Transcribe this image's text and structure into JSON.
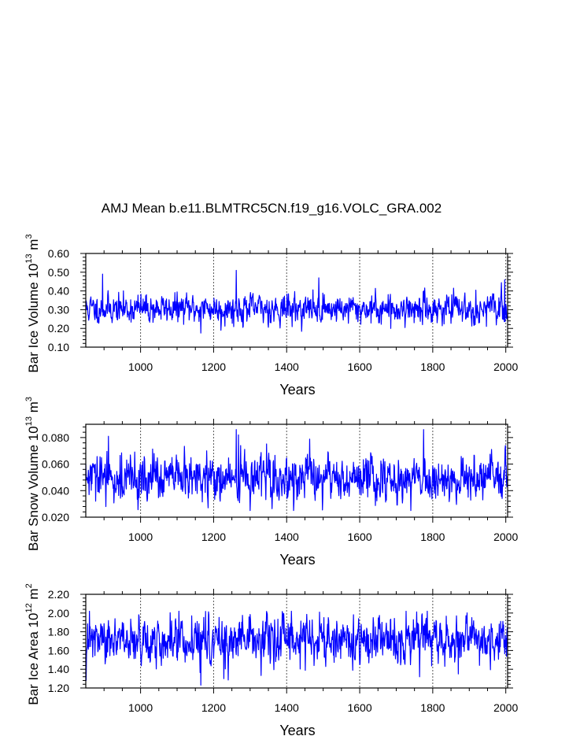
{
  "title": "AMJ Mean b.e11.BLMTRC5CN.f19_g16.VOLC_GRA.002",
  "colors": {
    "series": "#0000ff",
    "axis": "#000000",
    "grid": "#555555"
  },
  "chart_data": [
    {
      "type": "line",
      "ylabel": {
        "main": "Bar Ice Volume 10",
        "exp": "13",
        "unit": " m",
        "unit_exp": "3"
      },
      "xlabel": "Years",
      "xlim": [
        850,
        2005
      ],
      "xticks": [
        "1000",
        "1200",
        "1400",
        "1600",
        "1800",
        "2000"
      ],
      "ylim": [
        0.1,
        0.6
      ],
      "yticks": [
        "0.10",
        "0.20",
        "0.30",
        "0.40",
        "0.50",
        "0.60"
      ],
      "grid_x": true,
      "series": [
        {
          "name": "Bar Ice Volume",
          "mean": 0.305,
          "sd": 0.038,
          "min": 0.17,
          "max": 0.52,
          "seed": 11,
          "peaks": [
            [
              896,
              0.49
            ],
            [
              1262,
              0.51
            ],
            [
              1488,
              0.47
            ],
            [
              1997,
              0.46
            ],
            [
              1165,
              0.175
            ],
            [
              1220,
              0.19
            ],
            [
              1685,
              0.2
            ]
          ]
        }
      ]
    },
    {
      "type": "line",
      "ylabel": {
        "main": "Bar Snow Volume 10",
        "exp": "13",
        "unit": " m",
        "unit_exp": "3"
      },
      "xlabel": "Years",
      "xlim": [
        850,
        2005
      ],
      "xticks": [
        "1000",
        "1200",
        "1400",
        "1600",
        "1800",
        "2000"
      ],
      "ylim": [
        0.02,
        0.09
      ],
      "yticks": [
        "0.020",
        "0.040",
        "0.060",
        "0.080"
      ],
      "grid_x": true,
      "series": [
        {
          "name": "Bar Snow Volume",
          "mean": 0.049,
          "sd": 0.0085,
          "min": 0.025,
          "max": 0.087,
          "seed": 29,
          "peaks": [
            [
              912,
              0.081
            ],
            [
              1262,
              0.086
            ],
            [
              1268,
              0.082
            ],
            [
              1775,
              0.086
            ],
            [
              1740,
              0.025
            ],
            [
              1185,
              0.027
            ],
            [
              905,
              0.028
            ]
          ]
        }
      ]
    },
    {
      "type": "line",
      "ylabel": {
        "main": "Bar Ice Area 10",
        "exp": "12",
        "unit": " m",
        "unit_exp": "2"
      },
      "xlabel": "Years",
      "xlim": [
        850,
        2005
      ],
      "xticks": [
        "1000",
        "1200",
        "1400",
        "1600",
        "1800",
        "2000"
      ],
      "ylim": [
        1.2,
        2.2
      ],
      "yticks": [
        "1.20",
        "1.40",
        "1.60",
        "1.80",
        "2.00",
        "2.20"
      ],
      "grid_x": true,
      "series": [
        {
          "name": "Bar Ice Area",
          "mean": 1.7,
          "sd": 0.12,
          "min": 1.23,
          "max": 2.02,
          "seed": 47,
          "peaks": [
            [
              1165,
              1.23
            ],
            [
              1228,
              1.3
            ],
            [
              1490,
              2.01
            ],
            [
              1785,
              2.02
            ],
            [
              1870,
              1.35
            ],
            [
              1140,
              1.97
            ]
          ]
        }
      ]
    }
  ]
}
